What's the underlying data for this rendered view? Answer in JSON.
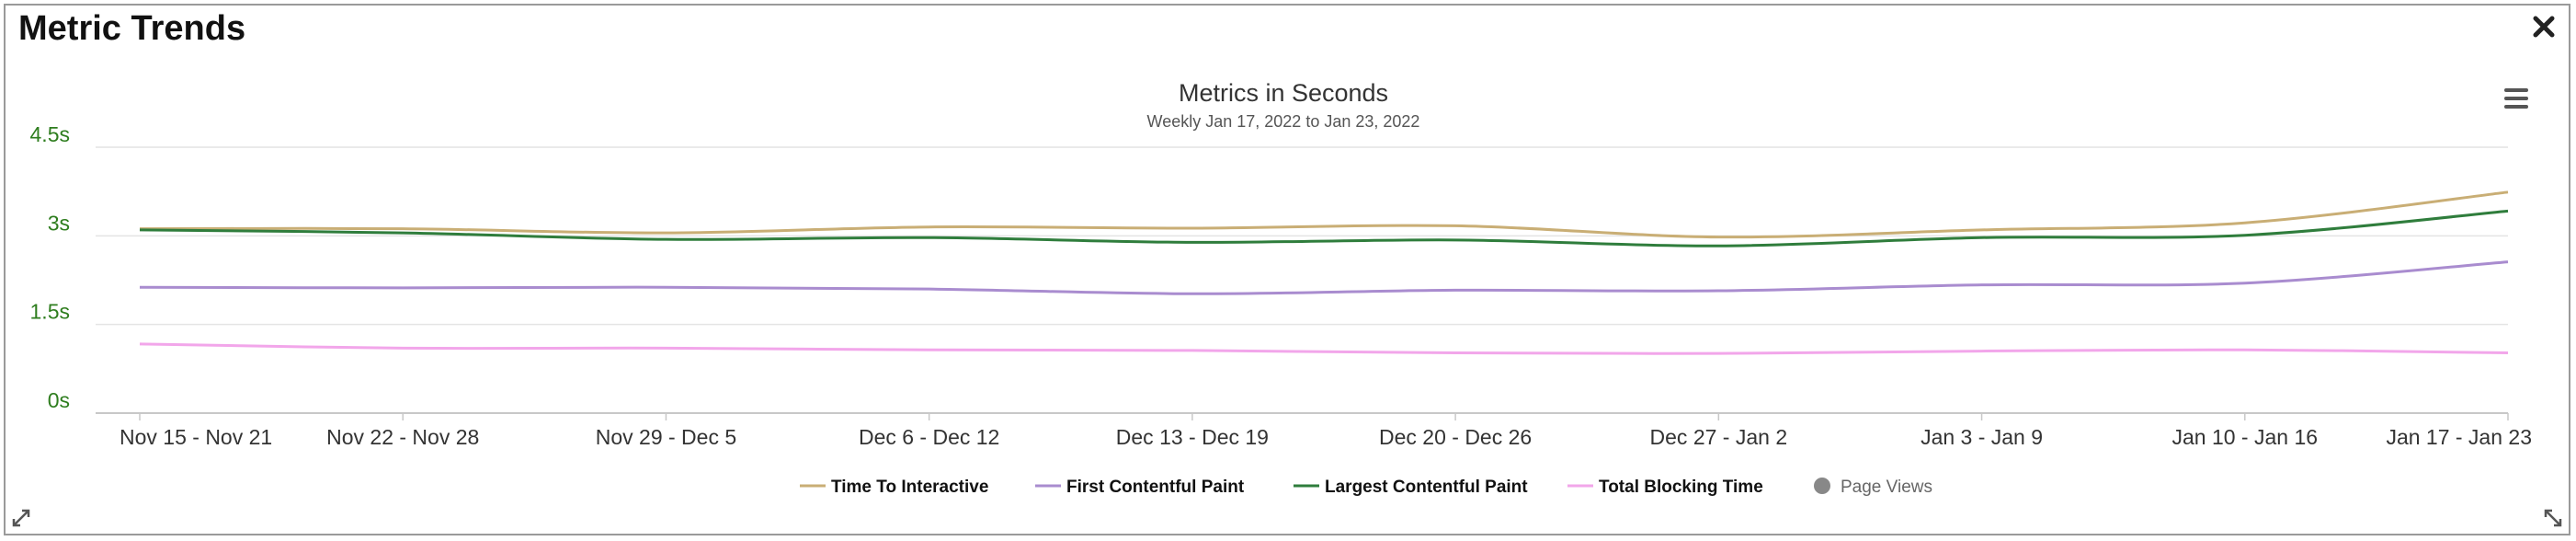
{
  "panel": {
    "title": "Metric Trends",
    "close_icon": "close-icon",
    "menu_icon": "hamburger-menu-icon",
    "resize_icon": "resize-icon"
  },
  "chart_data": {
    "type": "line",
    "title": "Metrics in Seconds",
    "subtitle": "Weekly Jan 17, 2022 to Jan 23, 2022",
    "xlabel": "",
    "ylabel": "",
    "ylim": [
      0,
      4.5
    ],
    "yticks": [
      "0s",
      "1.5s",
      "3s",
      "4.5s"
    ],
    "ytick_values": [
      0,
      1.5,
      3,
      4.5
    ],
    "grid": true,
    "legend_position": "bottom",
    "categories": [
      "Nov 15 - Nov 21",
      "Nov 22 - Nov 28",
      "Nov 29 - Dec 5",
      "Dec 6 - Dec 12",
      "Dec 13 - Dec 19",
      "Dec 20 - Dec 26",
      "Dec 27 - Jan 2",
      "Jan 3 - Jan 9",
      "Jan 10 - Jan 16",
      "Jan 17 - Jan 23"
    ],
    "series": [
      {
        "name": "Time To Interactive",
        "color": "#c9ae75",
        "values": [
          3.12,
          3.12,
          3.05,
          3.15,
          3.13,
          3.17,
          2.98,
          3.1,
          3.22,
          3.74
        ]
      },
      {
        "name": "First Contentful Paint",
        "color": "#a98ccf",
        "values": [
          2.13,
          2.12,
          2.13,
          2.1,
          2.02,
          2.08,
          2.07,
          2.17,
          2.2,
          2.56
        ]
      },
      {
        "name": "Largest Contentful Paint",
        "color": "#2f7d3c",
        "values": [
          3.1,
          3.05,
          2.94,
          2.97,
          2.89,
          2.93,
          2.83,
          2.97,
          3.01,
          3.42
        ]
      },
      {
        "name": "Total Blocking Time",
        "color": "#f2a6ea",
        "values": [
          1.17,
          1.1,
          1.1,
          1.07,
          1.06,
          1.02,
          1.01,
          1.05,
          1.07,
          1.02
        ]
      }
    ],
    "extra_legend": {
      "name": "Page Views",
      "color": "#888888"
    }
  }
}
